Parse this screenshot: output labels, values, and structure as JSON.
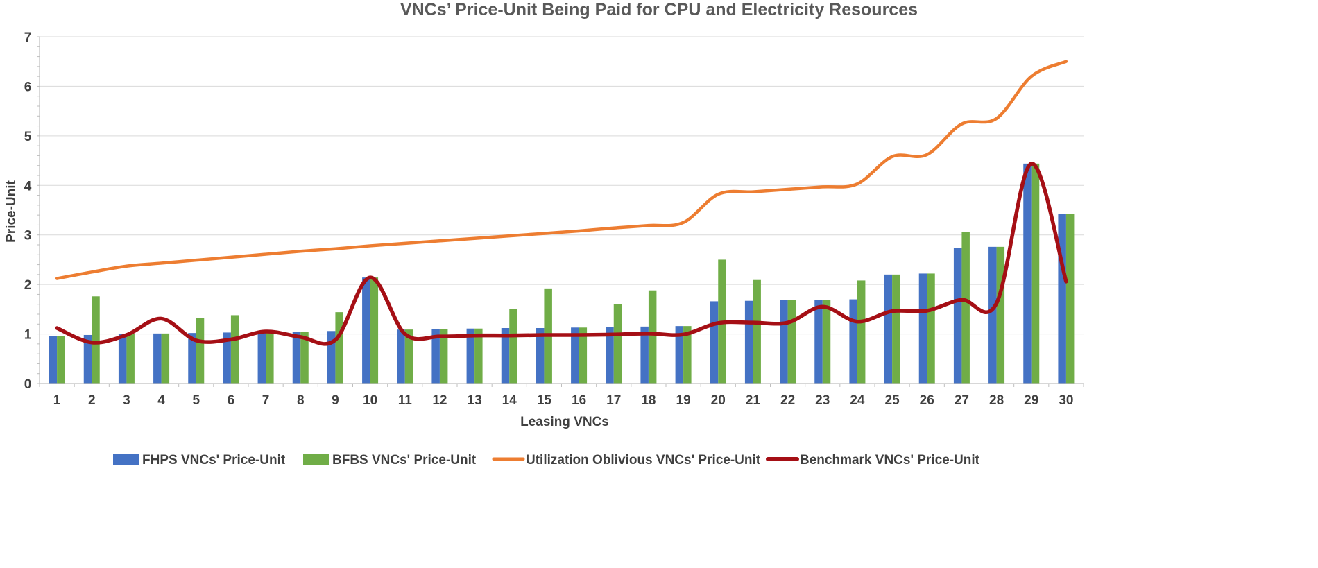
{
  "chart_data": {
    "type": "bar",
    "title": "VNCs’ Price-Unit Being Paid for CPU and Electricity Resources",
    "xlabel": "Leasing VNCs",
    "ylabel": "Price-Unit",
    "ylim": [
      0,
      7
    ],
    "yticks": [
      "0",
      "1",
      "2",
      "3",
      "4",
      "5",
      "6",
      "7"
    ],
    "categories": [
      "1",
      "2",
      "3",
      "4",
      "5",
      "6",
      "7",
      "8",
      "9",
      "10",
      "11",
      "12",
      "13",
      "14",
      "15",
      "16",
      "17",
      "18",
      "19",
      "20",
      "21",
      "22",
      "23",
      "24",
      "25",
      "26",
      "27",
      "28",
      "29",
      "30"
    ],
    "legend_position": "bottom",
    "series": [
      {
        "name": "FHPS VNCs' Price-Unit",
        "kind": "bar",
        "color": "#4472C4",
        "values": [
          0.96,
          0.98,
          1.0,
          1.01,
          1.02,
          1.03,
          1.04,
          1.05,
          1.06,
          2.14,
          1.09,
          1.1,
          1.11,
          1.12,
          1.12,
          1.13,
          1.14,
          1.15,
          1.16,
          1.66,
          1.67,
          1.68,
          1.69,
          1.7,
          2.2,
          2.22,
          2.74,
          2.76,
          4.44,
          3.43
        ]
      },
      {
        "name": "BFBS VNCs' Price-Unit",
        "kind": "bar",
        "color": "#70AD47",
        "values": [
          0.96,
          1.76,
          1.0,
          1.01,
          1.32,
          1.38,
          1.04,
          1.05,
          1.44,
          2.14,
          1.09,
          1.1,
          1.11,
          1.51,
          1.92,
          1.13,
          1.6,
          1.88,
          1.16,
          2.5,
          2.09,
          1.68,
          1.69,
          2.08,
          2.2,
          2.22,
          3.06,
          2.76,
          4.44,
          3.43
        ]
      },
      {
        "name": "Utilization Oblivious VNCs' Price-Unit",
        "kind": "line",
        "color": "#ED7D31",
        "values": [
          2.12,
          2.25,
          2.37,
          2.43,
          2.49,
          2.55,
          2.61,
          2.67,
          2.72,
          2.78,
          2.83,
          2.88,
          2.93,
          2.98,
          3.03,
          3.08,
          3.14,
          3.19,
          3.25,
          3.82,
          3.87,
          3.92,
          3.97,
          4.03,
          4.58,
          4.62,
          5.24,
          5.35,
          6.2,
          6.5
        ]
      },
      {
        "name": "Benchmark  VNCs' Price-Unit",
        "kind": "line",
        "color": "#A50F15",
        "values": [
          1.12,
          0.83,
          0.98,
          1.31,
          0.87,
          0.89,
          1.05,
          0.94,
          0.88,
          2.14,
          1.0,
          0.95,
          0.97,
          0.97,
          0.98,
          0.98,
          0.99,
          1.01,
          0.99,
          1.22,
          1.23,
          1.23,
          1.55,
          1.25,
          1.46,
          1.47,
          1.69,
          1.62,
          4.44,
          2.06
        ]
      }
    ]
  }
}
